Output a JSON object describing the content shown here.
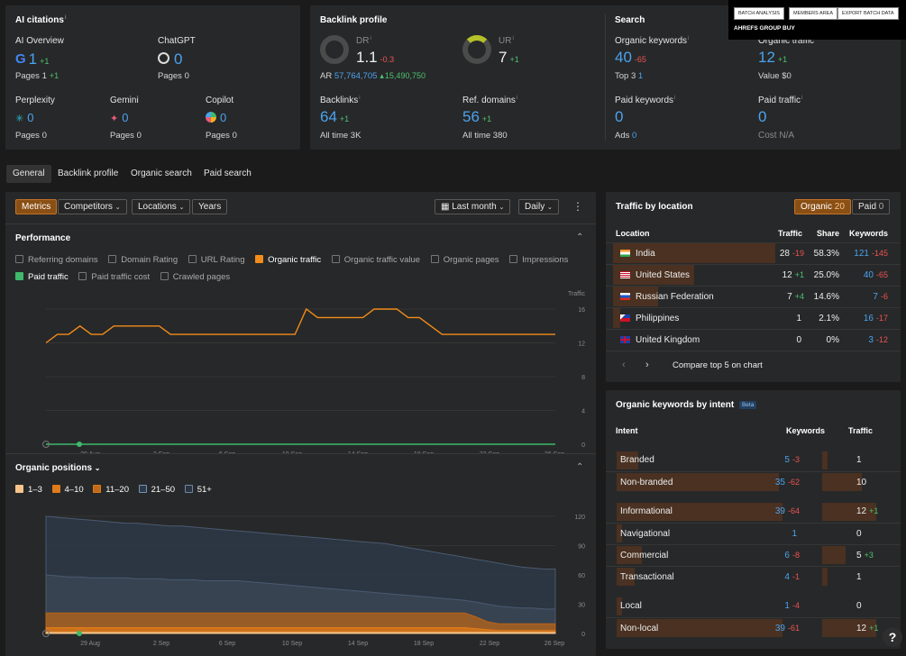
{
  "ai_citations": {
    "title": "AI citations",
    "overview": {
      "label": "AI Overview",
      "value": "1",
      "change": "+1",
      "pages_label": "Pages",
      "pages": "1",
      "pages_change": "+1"
    },
    "chatgpt": {
      "label": "ChatGPT",
      "value": "0",
      "pages_label": "Pages",
      "pages": "0"
    },
    "perplexity": {
      "label": "Perplexity",
      "value": "0",
      "pages_label": "Pages",
      "pages": "0"
    },
    "gemini": {
      "label": "Gemini",
      "value": "0",
      "pages_label": "Pages",
      "pages": "0"
    },
    "copilot": {
      "label": "Copilot",
      "value": "0",
      "pages_label": "Pages",
      "pages": "0"
    }
  },
  "backlink_profile": {
    "title": "Backlink profile",
    "dr": {
      "label": "DR",
      "value": "1.1",
      "change": "-0.3"
    },
    "ar": {
      "label": "AR",
      "value": "57,764,705",
      "change": "15,490,750"
    },
    "ur": {
      "label": "UR",
      "value": "7",
      "change": "+1"
    },
    "backlinks": {
      "label": "Backlinks",
      "value": "64",
      "change": "+1",
      "sub_label": "All time",
      "sub": "3K"
    },
    "ref_domains": {
      "label": "Ref. domains",
      "value": "56",
      "change": "+1",
      "sub_label": "All time",
      "sub": "380"
    }
  },
  "search": {
    "title": "Search",
    "organic_keywords": {
      "label": "Organic keywords",
      "value": "40",
      "change": "-65",
      "sub_label": "Top 3",
      "sub": "1"
    },
    "organic_traffic": {
      "label": "Organic traffic",
      "value": "12",
      "change": "+1",
      "sub_label": "Value",
      "sub": "$0"
    },
    "paid_keywords": {
      "label": "Paid keywords",
      "value": "0",
      "sub_label": "Ads",
      "sub": "0"
    },
    "paid_traffic": {
      "label": "Paid traffic",
      "value": "0",
      "sub_label": "Cost",
      "sub": "N/A"
    }
  },
  "popup": {
    "buttons": [
      "BATCH ANALYSIS",
      "MEMBERS AREA",
      "EXPORT BATCH DATA"
    ],
    "title": "AHREFS GROUP BUY"
  },
  "tabs": [
    "General",
    "Backlink profile",
    "Organic search",
    "Paid search"
  ],
  "toolbar": {
    "metrics": "Metrics",
    "competitors": "Competitors",
    "locations": "Locations",
    "years": "Years",
    "period": "Last month",
    "interval": "Daily"
  },
  "performance": {
    "title": "Performance",
    "checks": [
      {
        "label": "Referring domains",
        "on": false
      },
      {
        "label": "Domain Rating",
        "on": false
      },
      {
        "label": "URL Rating",
        "on": false
      },
      {
        "label": "Organic traffic",
        "on": true
      },
      {
        "label": "Organic traffic value",
        "on": false
      },
      {
        "label": "Organic pages",
        "on": false
      },
      {
        "label": "Impressions",
        "on": false
      }
    ],
    "checks2": [
      {
        "label": "Paid traffic",
        "on": true
      },
      {
        "label": "Paid traffic cost",
        "on": false
      },
      {
        "label": "Crawled pages",
        "on": false
      }
    ]
  },
  "chart_data": [
    {
      "type": "line",
      "title": "Performance",
      "ylabel": "Traffic",
      "ylim": [
        0,
        16
      ],
      "yticks": [
        "0",
        "4",
        "8",
        "12",
        "16"
      ],
      "xticks": [
        "29 Aug",
        "2 Sep",
        "6 Sep",
        "10 Sep",
        "14 Sep",
        "18 Sep",
        "22 Sep",
        "26 Sep"
      ],
      "series": [
        {
          "name": "Organic traffic",
          "color": "#f28c1a",
          "values": [
            12,
            13,
            13,
            14,
            13,
            13,
            14,
            14,
            14,
            14,
            14,
            13,
            13,
            13,
            13,
            13,
            13,
            13,
            13,
            13,
            13,
            13,
            13,
            16,
            15,
            15,
            15,
            15,
            15,
            16,
            16,
            16,
            15,
            15,
            14,
            13,
            13,
            13,
            13,
            13,
            13,
            13,
            13,
            13,
            13,
            13
          ]
        },
        {
          "name": "Paid traffic",
          "color": "#3fb96c",
          "values": [
            0,
            0,
            0,
            0,
            0,
            0,
            0,
            0,
            0,
            0,
            0,
            0,
            0,
            0,
            0,
            0,
            0,
            0,
            0,
            0,
            0,
            0,
            0,
            0,
            0,
            0,
            0,
            0,
            0,
            0,
            0,
            0,
            0,
            0,
            0,
            0,
            0,
            0,
            0,
            0,
            0,
            0,
            0,
            0,
            0,
            0
          ]
        }
      ]
    },
    {
      "type": "area",
      "title": "Organic positions",
      "ylim": [
        0,
        120
      ],
      "yticks": [
        "0",
        "30",
        "60",
        "90",
        "120"
      ],
      "xticks": [
        "29 Aug",
        "2 Sep",
        "6 Sep",
        "10 Sep",
        "14 Sep",
        "18 Sep",
        "22 Sep",
        "26 Sep"
      ],
      "series": [
        {
          "name": "1–3",
          "color": "#f5c48a",
          "values": [
            1,
            1,
            1,
            1,
            1,
            1,
            1,
            1,
            1,
            1,
            1,
            1,
            1,
            1,
            1,
            1,
            1,
            1,
            1,
            1,
            1,
            1,
            1,
            1,
            1,
            1,
            1,
            1,
            1,
            1,
            1,
            1,
            1,
            1,
            1,
            1,
            1,
            1,
            1,
            1,
            1,
            1,
            1,
            1,
            1,
            1
          ]
        },
        {
          "name": "4–10",
          "color": "#e07b1a",
          "values": [
            6,
            6,
            6,
            6,
            6,
            6,
            6,
            6,
            6,
            6,
            6,
            6,
            6,
            6,
            6,
            6,
            6,
            6,
            6,
            6,
            6,
            6,
            6,
            6,
            6,
            6,
            6,
            6,
            6,
            6,
            6,
            6,
            6,
            6,
            6,
            6,
            6,
            6,
            5,
            4,
            3,
            3,
            3,
            3,
            3,
            3
          ]
        },
        {
          "name": "11–20",
          "color": "#b96418",
          "values": [
            21,
            21,
            21,
            21,
            21,
            21,
            21,
            21,
            21,
            21,
            21,
            21,
            21,
            21,
            21,
            21,
            21,
            21,
            21,
            21,
            21,
            21,
            21,
            21,
            21,
            21,
            21,
            21,
            21,
            21,
            21,
            21,
            21,
            21,
            21,
            21,
            21,
            21,
            17,
            12,
            10,
            10,
            10,
            10,
            10,
            10
          ]
        },
        {
          "name": "21–50",
          "color": "#3a4554",
          "values": [
            60,
            59,
            58,
            58,
            57,
            57,
            57,
            57,
            56,
            56,
            56,
            55,
            55,
            55,
            54,
            54,
            54,
            54,
            53,
            52,
            51,
            50,
            49,
            48,
            47,
            46,
            45,
            44,
            43,
            42,
            41,
            40,
            39,
            38,
            37,
            36,
            35,
            34,
            32,
            30,
            28,
            27,
            26,
            26,
            25,
            25
          ]
        },
        {
          "name": "51+",
          "color": "#2d3846",
          "values": [
            120,
            119,
            118,
            117,
            116,
            115,
            114,
            113,
            113,
            112,
            111,
            110,
            110,
            109,
            108,
            107,
            106,
            105,
            104,
            103,
            102,
            101,
            100,
            99,
            98,
            97,
            96,
            95,
            94,
            93,
            92,
            90,
            88,
            86,
            84,
            82,
            80,
            78,
            76,
            74,
            72,
            70,
            68,
            67,
            66,
            66
          ]
        }
      ]
    }
  ],
  "positions": {
    "title": "Organic positions"
  },
  "traffic_by_location": {
    "title": "Traffic by location",
    "organic_label": "Organic",
    "organic_count": "20",
    "paid_label": "Paid",
    "paid_count": "0",
    "headers": [
      "Location",
      "Traffic",
      "Share",
      "Keywords"
    ],
    "rows": [
      {
        "name": "India",
        "traffic": "28",
        "t_change": "-19",
        "share": "58.3%",
        "keywords": "121",
        "k_change": "-145"
      },
      {
        "name": "United States",
        "traffic": "12",
        "t_change": "+1",
        "share": "25.0%",
        "keywords": "40",
        "k_change": "-65"
      },
      {
        "name": "Russian Federation",
        "traffic": "7",
        "t_change": "+4",
        "share": "14.6%",
        "keywords": "7",
        "k_change": "-6"
      },
      {
        "name": "Philippines",
        "traffic": "1",
        "t_change": "",
        "share": "2.1%",
        "keywords": "16",
        "k_change": "-17"
      },
      {
        "name": "United Kingdom",
        "traffic": "0",
        "t_change": "",
        "share": "0%",
        "keywords": "3",
        "k_change": "-12"
      }
    ],
    "compare": "Compare top 5 on chart"
  },
  "intent": {
    "title": "Organic keywords by intent",
    "beta": "Beta",
    "headers": [
      "Intent",
      "Keywords",
      "Traffic"
    ],
    "rows": [
      {
        "name": "Branded",
        "keywords": "5",
        "k_change": "-3",
        "traffic": "1",
        "t_change": ""
      },
      {
        "name": "Non-branded",
        "keywords": "35",
        "k_change": "-62",
        "traffic": "10",
        "t_change": ""
      },
      {
        "name": "Informational",
        "keywords": "39",
        "k_change": "-64",
        "traffic": "12",
        "t_change": "+1"
      },
      {
        "name": "Navigational",
        "keywords": "1",
        "k_change": "",
        "traffic": "0",
        "t_change": ""
      },
      {
        "name": "Commercial",
        "keywords": "6",
        "k_change": "-8",
        "traffic": "5",
        "t_change": "+3"
      },
      {
        "name": "Transactional",
        "keywords": "4",
        "k_change": "-1",
        "traffic": "1",
        "t_change": ""
      },
      {
        "name": "Local",
        "keywords": "1",
        "k_change": "-4",
        "traffic": "0",
        "t_change": ""
      },
      {
        "name": "Non-local",
        "keywords": "39",
        "k_change": "-61",
        "traffic": "12",
        "t_change": "+1"
      }
    ]
  },
  "help": "?"
}
